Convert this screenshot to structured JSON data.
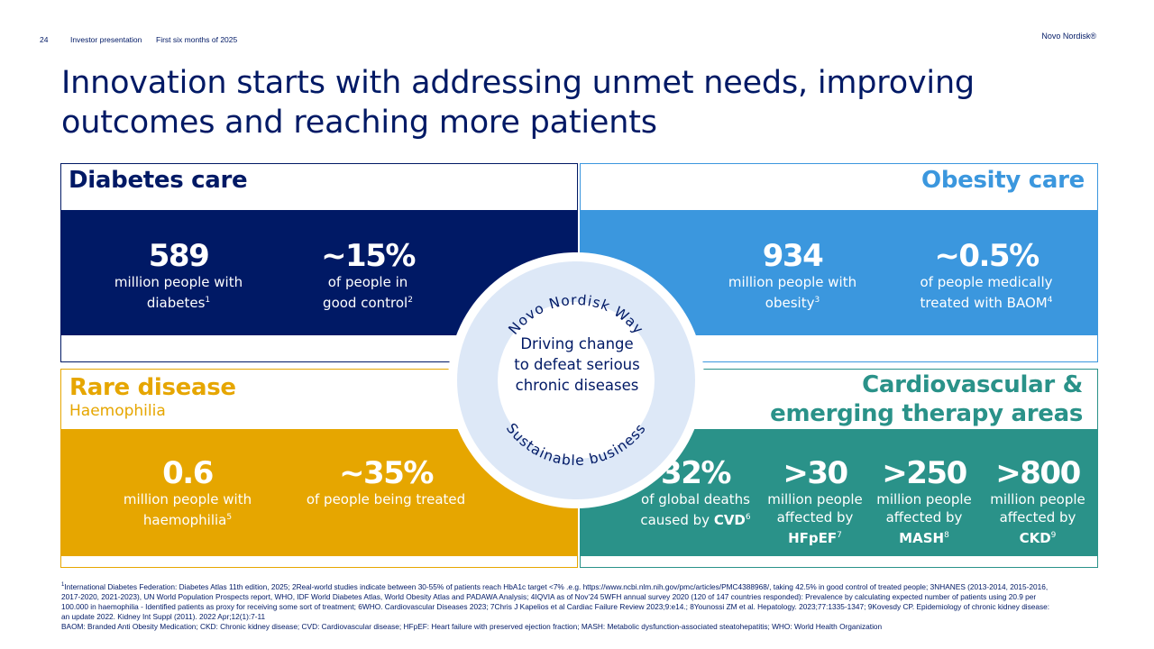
{
  "header": {
    "page_number": "24",
    "presentation": "Investor presentation",
    "period": "First six months of 2025",
    "brand": "Novo Nordisk®"
  },
  "title": "Innovation starts with addressing unmet needs, improving outcomes and reaching more patients",
  "colors": {
    "navy": "#001965",
    "blue": "#3b97de",
    "gold": "#e6a600",
    "teal": "#2a9289",
    "ring": "#dde8f7"
  },
  "quadrants": {
    "diabetes": {
      "title": "Diabetes care",
      "stats": [
        {
          "value": "589",
          "line1": "million people with",
          "line2": "diabetes",
          "sup": "1"
        },
        {
          "value": "~15%",
          "line1": "of people in",
          "line2": "good control",
          "sup": "2"
        }
      ]
    },
    "obesity": {
      "title": "Obesity care",
      "stats": [
        {
          "value": "934",
          "line1": "million people with",
          "line2": "obesity",
          "sup": "3"
        },
        {
          "value": "~0.5%",
          "line1": "of people medically",
          "line2": "treated with BAOM",
          "sup": "4"
        }
      ]
    },
    "rare": {
      "title": "Rare disease",
      "subtitle": "Haemophilia",
      "stats": [
        {
          "value": "0.6",
          "line1": "million people with",
          "line2": "haemophilia",
          "sup": "5"
        },
        {
          "value": "~35%",
          "line1": "of people being treated"
        }
      ]
    },
    "cardio": {
      "title_line1": "Cardiovascular &",
      "title_line2": "emerging therapy areas",
      "stats": [
        {
          "value": "32%",
          "line1": "of global deaths",
          "line2": "caused by ",
          "bold": "CVD",
          "sup": "6"
        },
        {
          "value": ">30",
          "line1": "million people",
          "line2": "affected by",
          "bold": "HFpEF",
          "sup": "7"
        },
        {
          "value": ">250",
          "line1": "million people",
          "line2": "affected by",
          "bold": "MASH",
          "sup": "8"
        },
        {
          "value": ">800",
          "line1": "million people",
          "line2": "affected by",
          "bold": "CKD",
          "sup": "9"
        }
      ]
    }
  },
  "center": {
    "ring_top": "Novo Nordisk Way",
    "ring_bottom": "Sustainable business",
    "line1": "Driving change",
    "line2": "to defeat serious",
    "line3": "chronic diseases"
  },
  "footnotes": {
    "line1": "International Diabetes Federation: Diabetes Atlas 11th edition, 2025; 2Real-world studies indicate between 30-55% of patients reach HbA1c target <7% .e.g. https://www.ncbi.nlm.nih.gov/pmc/articles/PMC4388968/, taking 42.5% in good control of treated people; 3NHANES (2013-2014, 2015-2016, 2017-2020, 2021-2023), UN World Population Prospects report, WHO, IDF World Diabetes Atlas, World Obesity Atlas and PADAWA Analysis; 4IQVIA as of Nov’24 5WFH annual survey 2020 (120 of 147 countries responded): Prevalence by calculating expected number of patients using 20.9 per 100.000 in haemophilia - Identified patients as proxy for receiving some sort of treatment; 6WHO. Cardiovascular Diseases 2023; 7Chris J Kapelios et al Cardiac Failure Review 2023;9:e14.; 8Younossi ZM et al. Hepatology. 2023;77:1335-1347; 9Kovesdy CP. Epidemiology of chronic kidney disease: an update 2022. Kidney Int Suppl (2011). 2022 Apr;12(1):7-11",
    "line2": "BAOM: Branded Anti Obesity Medication; CKD: Chronic kidney disease; CVD: Cardiovascular disease; HFpEF: Heart failure with preserved ejection fraction; MASH: Metabolic dysfunction-associated steatohepatitis; WHO: World Health Organization",
    "first_marker": "1"
  }
}
